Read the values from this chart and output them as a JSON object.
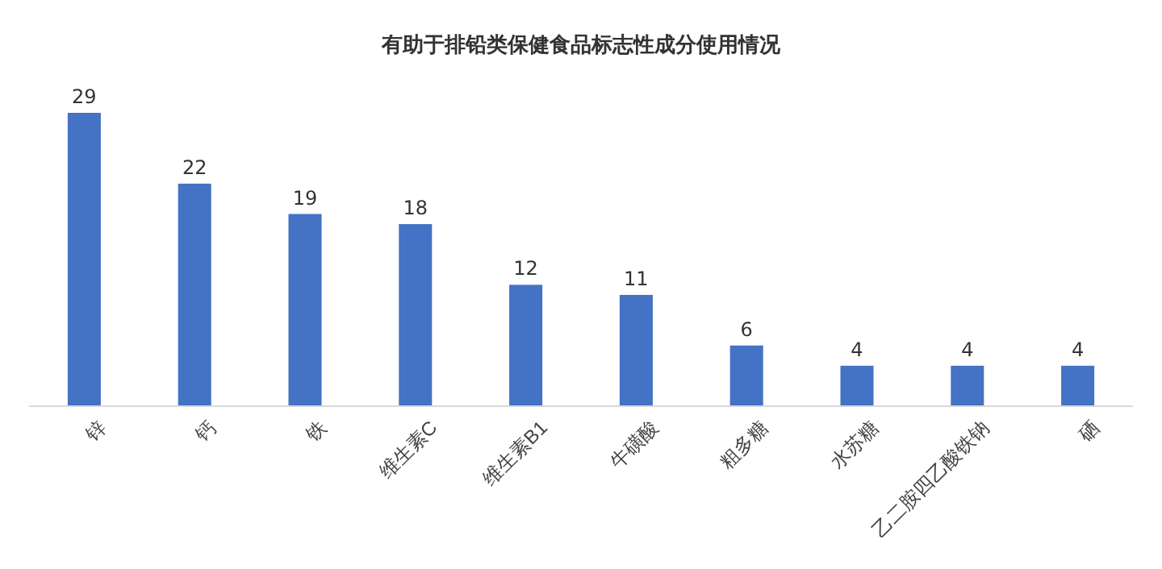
{
  "chart_data": {
    "type": "bar",
    "title": "有助于排铅类保健食品标志性成分使用情况",
    "categories": [
      "锌",
      "钙",
      "铁",
      "维生素C",
      "维生素B1",
      "牛磺酸",
      "粗多糖",
      "水苏糖",
      "乙二胺四乙酸铁钠",
      "硒"
    ],
    "values": [
      29,
      22,
      19,
      18,
      12,
      11,
      6,
      4,
      4,
      4
    ],
    "color": "#4472c4",
    "data_labels": true,
    "tick_labels": "x"
  }
}
